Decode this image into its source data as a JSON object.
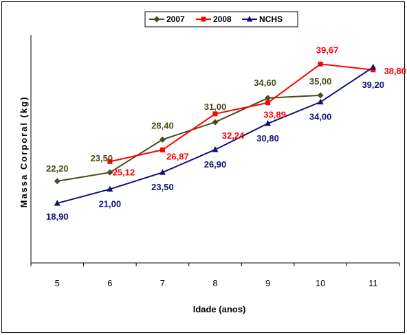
{
  "chart_data": {
    "type": "line",
    "title": "",
    "xlabel": "Idade (anos)",
    "ylabel": "Massa Corporal (kg)",
    "categories": [
      "5",
      "6",
      "7",
      "8",
      "9",
      "10",
      "11"
    ],
    "ylim": [
      10,
      44
    ],
    "grid": false,
    "legend_position": "top",
    "series": [
      {
        "name": "2007",
        "color": "#4a4a1c",
        "marker": "diamond",
        "values": [
          22.2,
          23.5,
          28.4,
          31.0,
          34.6,
          35.0,
          null
        ],
        "labels": [
          "22,20",
          "23,50",
          "28,40",
          "31,00",
          "34,60",
          "35,00",
          ""
        ]
      },
      {
        "name": "2008",
        "color": "#ff0000",
        "marker": "square",
        "values": [
          null,
          25.12,
          26.87,
          32.24,
          33.89,
          39.67,
          38.8
        ],
        "labels": [
          "",
          "25,12",
          "26,87",
          "32,24",
          "33,89",
          "39,67",
          "38,80"
        ]
      },
      {
        "name": "NCHS",
        "color": "#10107a",
        "marker": "triangle",
        "values": [
          18.9,
          21.0,
          23.5,
          26.9,
          30.8,
          34.0,
          39.2
        ],
        "labels": [
          "18,90",
          "21,00",
          "23,50",
          "26,90",
          "30,80",
          "34,00",
          "39,20"
        ]
      }
    ]
  }
}
